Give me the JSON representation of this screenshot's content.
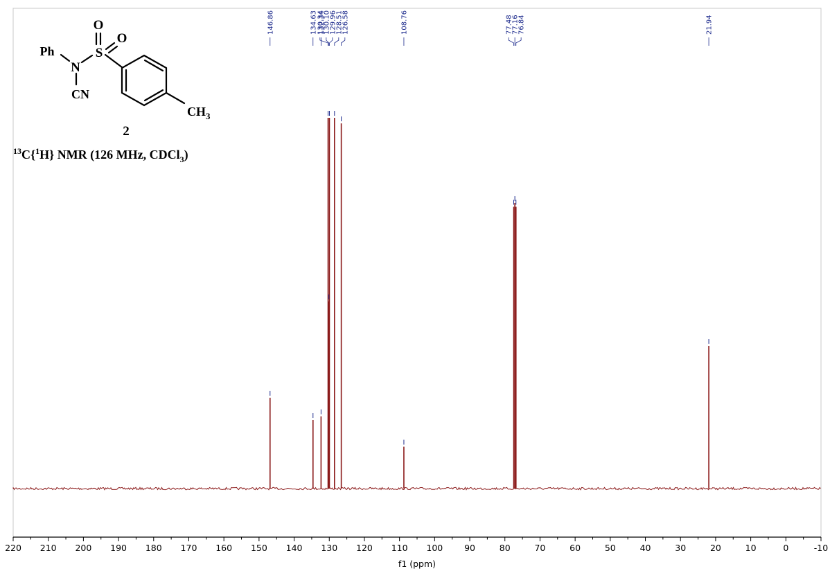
{
  "molecule": {
    "atoms": {
      "o_top": "O",
      "o_right": "O",
      "s": "S",
      "ph": "Ph",
      "n": "N",
      "cn": "CN",
      "ch3": "CH",
      "ch3_sub": "3"
    },
    "compound_number": "2"
  },
  "nmr_title": {
    "mass_number": "13",
    "element": "C",
    "decoupling_open": "{",
    "decoupling_mass": "1",
    "decoupling_rest": "H} NMR (126 MHz, CDCl",
    "solvent_sub": "3",
    "close": ")"
  },
  "colors": {
    "spectrum": "#8b1a1a",
    "peak_marker": "#1c2a8c",
    "axis": "#000000",
    "frame": "#c8c8c8"
  },
  "chart_data": {
    "type": "line",
    "xlabel": "f1 (ppm)",
    "ylabel": "",
    "xlim": [
      220,
      -10
    ],
    "x_reversed": true,
    "grid": false,
    "x_ticks": [
      220,
      210,
      200,
      190,
      180,
      170,
      160,
      150,
      140,
      130,
      120,
      110,
      100,
      90,
      80,
      70,
      60,
      50,
      40,
      30,
      20,
      10,
      0,
      -10
    ],
    "peaks": [
      {
        "ppm": 146.86,
        "intensity": 0.245
      },
      {
        "ppm": 134.63,
        "intensity": 0.185
      },
      {
        "ppm": 132.34,
        "intensity": 0.195
      },
      {
        "ppm": 130.34,
        "intensity": 1.0
      },
      {
        "ppm": 130.1,
        "intensity": 0.505
      },
      {
        "ppm": 129.96,
        "intensity": 1.0
      },
      {
        "ppm": 128.51,
        "intensity": 1.0
      },
      {
        "ppm": 126.58,
        "intensity": 0.985
      },
      {
        "ppm": 108.76,
        "intensity": 0.113
      },
      {
        "ppm": 77.48,
        "intensity": 0.76
      },
      {
        "ppm": 77.16,
        "intensity": 0.77
      },
      {
        "ppm": 76.84,
        "intensity": 0.76
      },
      {
        "ppm": 21.94,
        "intensity": 0.385
      }
    ],
    "peak_labels": [
      {
        "text": "146.86",
        "ppm": 146.86
      },
      {
        "text": "134.63",
        "ppm": 134.63
      },
      {
        "text": "132.34",
        "ppm": 132.34
      },
      {
        "text": "130.34",
        "ppm": 130.34
      },
      {
        "text": "130.10",
        "ppm": 130.1
      },
      {
        "text": "129.96",
        "ppm": 129.96
      },
      {
        "text": "128.51",
        "ppm": 128.51
      },
      {
        "text": "126.58",
        "ppm": 126.58
      },
      {
        "text": "108.76",
        "ppm": 108.76
      },
      {
        "text": "77.48",
        "ppm": 77.48
      },
      {
        "text": "77.16",
        "ppm": 77.16
      },
      {
        "text": "76.84",
        "ppm": 76.84
      },
      {
        "text": "21.94",
        "ppm": 21.94
      }
    ]
  }
}
